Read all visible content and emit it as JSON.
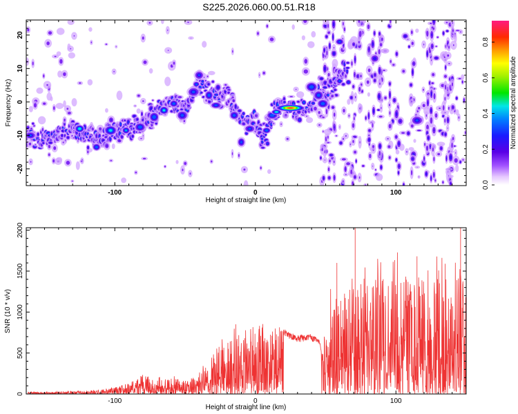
{
  "title": "S225.2026.060.00.51.R18",
  "chart_data": [
    {
      "type": "heatmap",
      "title": "S225.2026.060.00.51.R18",
      "xlabel": "Height of straight line (km)",
      "ylabel": "Frequency (Hz)",
      "xlim": [
        -163,
        150
      ],
      "ylim": [
        -25,
        24.5
      ],
      "x_ticks": [
        -100,
        0,
        100
      ],
      "y_ticks": [
        -20,
        -10,
        0,
        10,
        20
      ],
      "x_tick_labels": [
        "-100",
        "0",
        "100"
      ],
      "y_tick_labels": [
        "-20",
        "-10",
        "0",
        "10",
        "20"
      ],
      "ridge": {
        "x": [
          -163,
          -150,
          -130,
          -115,
          -100,
          -90,
          -80,
          -70,
          -60,
          -50,
          -40,
          -30,
          -20,
          -10,
          0,
          5,
          10,
          15,
          20,
          30,
          38,
          45,
          55,
          65
        ],
        "y": [
          -10,
          -10.5,
          -8,
          -11,
          -8.5,
          -8,
          -6,
          -3,
          0,
          -2,
          6,
          2,
          2,
          -5,
          -5,
          -12,
          -6,
          -3,
          -1.8,
          -1.8,
          -2,
          3,
          4,
          10
        ]
      },
      "colorbar": {
        "label": "Normalized spectral amplitude",
        "range": [
          0,
          0.92
        ],
        "ticks": [
          0.0,
          0.2,
          0.4,
          0.6,
          0.8
        ],
        "tick_labels": [
          "0.0",
          "0.2",
          "0.4",
          "0.6",
          "0.8"
        ]
      }
    },
    {
      "type": "line",
      "xlabel": "Height of straight line (km)",
      "ylabel": "SNR (10 * v/v)",
      "xlim": [
        -163,
        150
      ],
      "ylim": [
        0,
        2030
      ],
      "x_ticks": [
        -100,
        0,
        100
      ],
      "y_ticks": [
        0,
        500,
        1000,
        1500,
        2000
      ],
      "x_tick_labels": [
        "-100",
        "0",
        "100"
      ],
      "y_tick_labels": [
        "0",
        "500",
        "1000",
        "1500",
        "2000"
      ],
      "series": [
        {
          "name": "SNR",
          "color": "#ee3333",
          "envelope_x": [
            -163,
            -120,
            -100,
            -90,
            -80,
            -70,
            -60,
            -50,
            -40,
            -30,
            -20,
            -10,
            0,
            10,
            20,
            30,
            40,
            45,
            48,
            55,
            60,
            70,
            80,
            100,
            120,
            140,
            150
          ],
          "envelope_y": [
            25,
            40,
            80,
            140,
            250,
            180,
            200,
            170,
            250,
            450,
            680,
            800,
            880,
            920,
            800,
            720,
            730,
            680,
            520,
            1300,
            1400,
            1650,
            1450,
            1500,
            1550,
            1400,
            1600
          ],
          "peaks": [
            {
              "x": 71,
              "y": 2030
            },
            {
              "x": 146,
              "y": 2030
            },
            {
              "x": 58,
              "y": 1600
            },
            {
              "x": 115,
              "y": 1680
            },
            {
              "x": 135,
              "y": 1590
            }
          ]
        }
      ]
    }
  ]
}
